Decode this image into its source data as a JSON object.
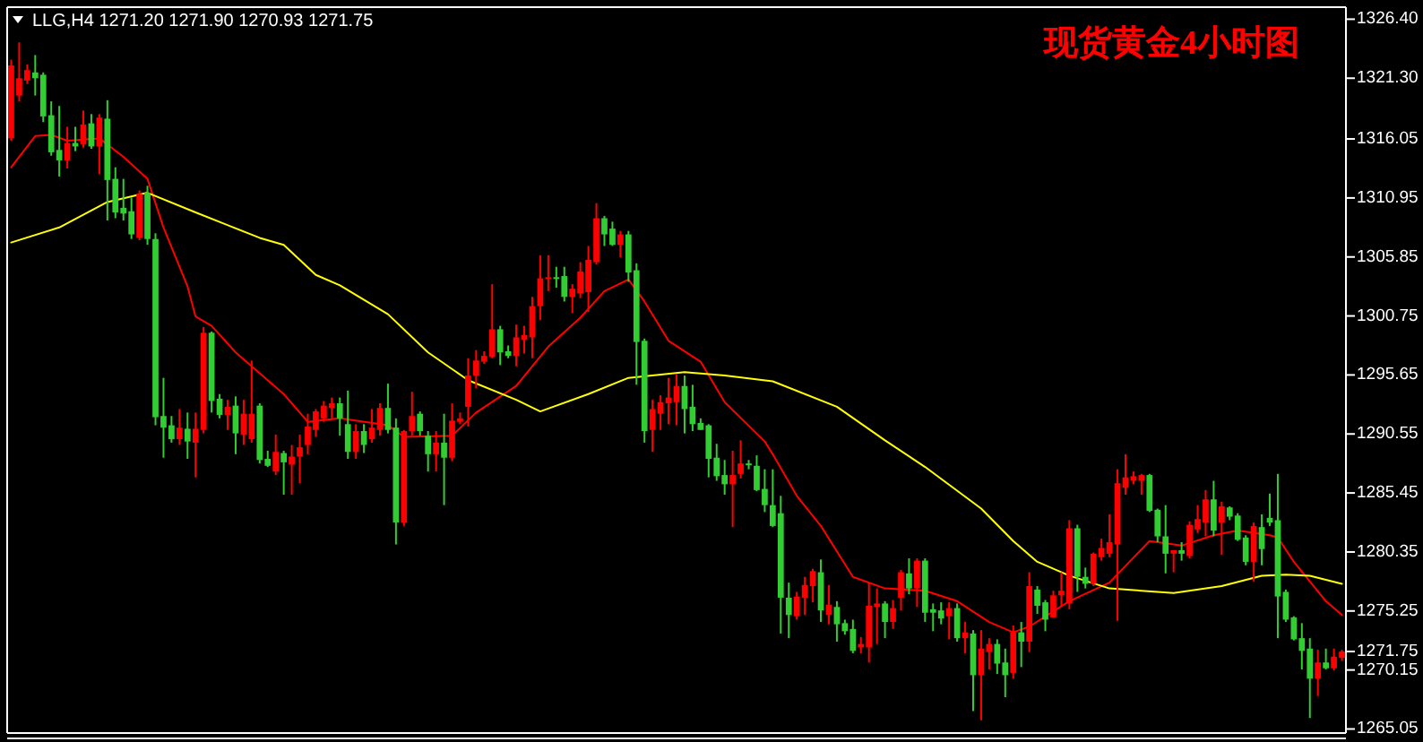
{
  "chart_data": {
    "type": "candlestick",
    "title": "现货黄金4小时图",
    "annotations": [
      "LLG,H4 1271.20 1271.90 1270.93 1271.75"
    ],
    "categories": [
      null,
      null,
      null,
      null,
      null,
      null,
      null,
      null,
      null,
      null,
      null,
      null,
      null,
      null,
      null,
      null,
      null,
      null,
      null,
      null,
      null,
      null,
      null,
      null,
      null,
      null,
      null,
      null,
      null,
      null,
      null,
      null,
      null,
      null,
      null,
      null,
      null,
      null,
      null,
      null,
      null,
      null,
      null,
      null,
      null,
      null,
      null,
      null,
      null,
      null,
      null,
      null,
      null,
      null,
      null,
      null,
      null,
      null,
      null,
      null,
      null,
      null,
      null,
      null,
      null,
      null,
      null,
      null,
      null,
      null,
      null,
      null,
      null,
      null,
      null,
      null,
      null,
      null,
      null,
      null,
      null,
      null,
      null,
      null,
      null,
      null,
      null,
      null,
      null,
      null,
      null,
      null,
      null,
      null,
      null,
      null,
      null,
      null,
      null,
      null,
      null,
      null,
      null,
      null,
      null,
      null,
      null,
      null,
      null,
      null,
      null,
      null,
      null,
      null,
      null,
      null,
      null,
      null,
      null,
      null,
      null,
      null,
      null,
      null,
      null,
      null,
      null,
      null,
      null,
      null,
      null,
      null,
      null,
      null,
      null,
      null,
      null,
      null,
      null,
      null,
      null,
      null,
      null,
      null,
      null,
      null,
      null,
      null,
      null,
      null,
      null,
      null,
      null,
      null,
      null,
      null,
      null,
      null,
      null,
      null,
      null,
      null,
      null,
      null,
      null,
      null,
      null
    ],
    "ohlc": [
      [
        1316.1,
        1322.9,
        1315.9,
        1322.4
      ],
      [
        1319.8,
        1324.4,
        1319.3,
        1321.3
      ],
      [
        1321.1,
        1322.5,
        1320.8,
        1322.0
      ],
      [
        1321.8,
        1323.3,
        1319.8,
        1321.3
      ],
      [
        1321.6,
        1321.8,
        1317.5,
        1318.0
      ],
      [
        1318.1,
        1319.3,
        1314.6,
        1314.9
      ],
      [
        1315.1,
        1318.9,
        1312.8,
        1314.2
      ],
      [
        1314.2,
        1317.1,
        1313.5,
        1315.7
      ],
      [
        1315.7,
        1317.1,
        1315.0,
        1315.4
      ],
      [
        1315.6,
        1318.5,
        1315.3,
        1317.3
      ],
      [
        1317.4,
        1318.2,
        1315.2,
        1315.4
      ],
      [
        1315.4,
        1318.2,
        1313.0,
        1317.9
      ],
      [
        1317.8,
        1319.4,
        1309.0,
        1312.5
      ],
      [
        1312.6,
        1313.6,
        1309.2,
        1309.7
      ],
      [
        1310.1,
        1312.6,
        1309.0,
        1309.6
      ],
      [
        1309.8,
        1311.0,
        1307.4,
        1307.8
      ],
      [
        1307.5,
        1311.6,
        1307.3,
        1311.3
      ],
      [
        1311.4,
        1312.0,
        1306.9,
        1307.4
      ],
      [
        1307.4,
        1307.9,
        1291.3,
        1292.0
      ],
      [
        1292.1,
        1295.4,
        1288.5,
        1291.1
      ],
      [
        1291.3,
        1292.1,
        1289.8,
        1290.1
      ],
      [
        1290.1,
        1292.7,
        1289.6,
        1291.1
      ],
      [
        1291.0,
        1292.4,
        1288.4,
        1289.9
      ],
      [
        1289.8,
        1292.4,
        1286.8,
        1291.0
      ],
      [
        1290.9,
        1299.8,
        1290.6,
        1299.3
      ],
      [
        1299.3,
        1299.4,
        1292.4,
        1293.4
      ],
      [
        1293.6,
        1294.0,
        1291.9,
        1292.2
      ],
      [
        1292.2,
        1293.5,
        1290.9,
        1292.9
      ],
      [
        1293.0,
        1293.8,
        1288.8,
        1290.6
      ],
      [
        1290.5,
        1293.5,
        1289.6,
        1292.3
      ],
      [
        1290.1,
        1296.9,
        1289.8,
        1292.3
      ],
      [
        1293.0,
        1293.2,
        1288.0,
        1288.3
      ],
      [
        1288.4,
        1289.1,
        1287.7,
        1287.8
      ],
      [
        1287.3,
        1290.5,
        1287.0,
        1289.0
      ],
      [
        1288.9,
        1289.1,
        1285.3,
        1288.1
      ],
      [
        1287.9,
        1289.6,
        1285.3,
        1288.6
      ],
      [
        1288.6,
        1290.5,
        1286.3,
        1289.4
      ],
      [
        1289.6,
        1292.3,
        1288.8,
        1291.2
      ],
      [
        1290.9,
        1292.7,
        1290.3,
        1292.5
      ],
      [
        1291.9,
        1293.4,
        1291.6,
        1293.0
      ],
      [
        1292.8,
        1293.7,
        1291.9,
        1293.2
      ],
      [
        1293.2,
        1293.7,
        1290.4,
        1291.9
      ],
      [
        1291.4,
        1294.3,
        1288.4,
        1289.0
      ],
      [
        1289.0,
        1291.4,
        1288.4,
        1290.8
      ],
      [
        1290.8,
        1291.4,
        1288.9,
        1289.6
      ],
      [
        1290.1,
        1292.7,
        1289.8,
        1291.1
      ],
      [
        1290.9,
        1293.2,
        1290.4,
        1292.8
      ],
      [
        1292.8,
        1294.9,
        1290.6,
        1290.9
      ],
      [
        1291.1,
        1291.9,
        1281.0,
        1282.9
      ],
      [
        1282.9,
        1290.9,
        1282.6,
        1290.8
      ],
      [
        1290.8,
        1294.2,
        1290.4,
        1292.1
      ],
      [
        1292.3,
        1292.5,
        1290.4,
        1290.8
      ],
      [
        1290.4,
        1290.8,
        1287.3,
        1288.8
      ],
      [
        1288.8,
        1290.8,
        1287.3,
        1289.8
      ],
      [
        1289.8,
        1292.3,
        1284.4,
        1288.5
      ],
      [
        1288.5,
        1293.2,
        1288.2,
        1291.7
      ],
      [
        1291.6,
        1292.4,
        1291.4,
        1291.9
      ],
      [
        1292.9,
        1297.1,
        1291.2,
        1295.6
      ],
      [
        1295.6,
        1297.8,
        1294.5,
        1296.9
      ],
      [
        1296.8,
        1297.7,
        1296.6,
        1297.3
      ],
      [
        1297.2,
        1303.5,
        1297.1,
        1299.6
      ],
      [
        1299.6,
        1299.9,
        1296.5,
        1297.6
      ],
      [
        1297.7,
        1298.2,
        1297.1,
        1297.3
      ],
      [
        1297.3,
        1300.0,
        1296.4,
        1298.9
      ],
      [
        1298.7,
        1299.9,
        1297.5,
        1299.1
      ],
      [
        1298.9,
        1302.4,
        1297.1,
        1301.6
      ],
      [
        1301.6,
        1306.0,
        1300.4,
        1304.0
      ],
      [
        1304.0,
        1306.0,
        1302.9,
        1304.1
      ],
      [
        1304.1,
        1305.0,
        1303.2,
        1304.0
      ],
      [
        1304.2,
        1305.0,
        1302.0,
        1302.4
      ],
      [
        1302.4,
        1303.5,
        1301.0,
        1303.1
      ],
      [
        1302.7,
        1305.4,
        1302.3,
        1304.6
      ],
      [
        1302.8,
        1306.8,
        1301.1,
        1305.6
      ],
      [
        1305.4,
        1310.5,
        1305.2,
        1309.2
      ],
      [
        1309.2,
        1309.4,
        1306.8,
        1307.8
      ],
      [
        1308.3,
        1308.9,
        1306.8,
        1306.9
      ],
      [
        1306.9,
        1308.1,
        1305.8,
        1307.8
      ],
      [
        1307.8,
        1308.1,
        1303.7,
        1304.5
      ],
      [
        1304.7,
        1305.3,
        1294.8,
        1298.5
      ],
      [
        1298.6,
        1298.8,
        1289.8,
        1290.8
      ],
      [
        1290.9,
        1293.5,
        1289.0,
        1292.7
      ],
      [
        1292.3,
        1293.9,
        1290.9,
        1293.3
      ],
      [
        1293.2,
        1295.4,
        1291.4,
        1293.7
      ],
      [
        1293.3,
        1295.7,
        1291.3,
        1294.7
      ],
      [
        1294.7,
        1295.6,
        1290.6,
        1292.7
      ],
      [
        1292.9,
        1294.8,
        1290.8,
        1291.4
      ],
      [
        1291.5,
        1291.9,
        1290.9,
        1290.9
      ],
      [
        1291.3,
        1291.4,
        1286.8,
        1288.4
      ],
      [
        1288.5,
        1289.7,
        1286.5,
        1286.9
      ],
      [
        1287.0,
        1288.3,
        1285.3,
        1286.2
      ],
      [
        1286.2,
        1289.1,
        1282.5,
        1287.0
      ],
      [
        1287.1,
        1290.0,
        1286.7,
        1288.0
      ],
      [
        1288.0,
        1288.3,
        1287.5,
        1287.9
      ],
      [
        1287.8,
        1288.7,
        1285.6,
        1285.7
      ],
      [
        1285.8,
        1287.5,
        1283.8,
        1284.4
      ],
      [
        1284.4,
        1287.5,
        1282.5,
        1282.6
      ],
      [
        1283.7,
        1285.2,
        1273.3,
        1276.4
      ],
      [
        1276.4,
        1277.7,
        1272.9,
        1274.9
      ],
      [
        1274.8,
        1276.9,
        1274.5,
        1276.5
      ],
      [
        1276.4,
        1278.2,
        1274.9,
        1277.5
      ],
      [
        1277.4,
        1278.9,
        1276.0,
        1278.7
      ],
      [
        1278.6,
        1279.7,
        1274.3,
        1275.3
      ],
      [
        1274.9,
        1277.5,
        1274.1,
        1275.8
      ],
      [
        1275.6,
        1276.1,
        1272.6,
        1274.1
      ],
      [
        1274.2,
        1274.5,
        1273.2,
        1273.5
      ],
      [
        1273.7,
        1274.5,
        1271.6,
        1271.8
      ],
      [
        1272.1,
        1273.0,
        1271.6,
        1272.4
      ],
      [
        1272.1,
        1277.7,
        1270.8,
        1275.7
      ],
      [
        1275.6,
        1277.2,
        1272.4,
        1275.9
      ],
      [
        1275.9,
        1276.1,
        1272.9,
        1274.3
      ],
      [
        1274.3,
        1276.2,
        1273.7,
        1275.5
      ],
      [
        1276.4,
        1278.8,
        1275.3,
        1278.6
      ],
      [
        1278.5,
        1279.8,
        1276.7,
        1277.2
      ],
      [
        1277.2,
        1279.8,
        1275.6,
        1279.6
      ],
      [
        1279.6,
        1279.8,
        1274.3,
        1275.1
      ],
      [
        1275.4,
        1275.9,
        1273.5,
        1275.1
      ],
      [
        1275.3,
        1276.0,
        1274.1,
        1274.6
      ],
      [
        1274.8,
        1276.0,
        1272.8,
        1275.5
      ],
      [
        1275.5,
        1275.9,
        1272.6,
        1272.9
      ],
      [
        1272.9,
        1274.3,
        1271.6,
        1273.4
      ],
      [
        1273.3,
        1273.6,
        1266.6,
        1269.7
      ],
      [
        1269.7,
        1273.6,
        1265.8,
        1272.0
      ],
      [
        1271.7,
        1272.9,
        1270.2,
        1272.4
      ],
      [
        1272.4,
        1272.8,
        1269.8,
        1270.7
      ],
      [
        1270.8,
        1272.0,
        1267.8,
        1269.7
      ],
      [
        1269.9,
        1274.0,
        1269.4,
        1273.4
      ],
      [
        1273.4,
        1274.3,
        1270.4,
        1272.6
      ],
      [
        1272.6,
        1278.6,
        1271.7,
        1277.4
      ],
      [
        1277.1,
        1277.4,
        1275.0,
        1275.7
      ],
      [
        1276.0,
        1276.2,
        1273.5,
        1274.5
      ],
      [
        1274.7,
        1277.0,
        1274.7,
        1276.6
      ],
      [
        1276.6,
        1278.6,
        1275.6,
        1277.0
      ],
      [
        1275.9,
        1283.1,
        1275.4,
        1282.4
      ],
      [
        1282.4,
        1282.7,
        1276.9,
        1278.2
      ],
      [
        1278.2,
        1279.0,
        1277.2,
        1277.6
      ],
      [
        1277.6,
        1280.3,
        1277.4,
        1280.2
      ],
      [
        1279.9,
        1281.5,
        1279.6,
        1280.7
      ],
      [
        1280.2,
        1283.6,
        1279.9,
        1281.2
      ],
      [
        1281.0,
        1287.5,
        1274.4,
        1286.3
      ],
      [
        1285.9,
        1288.8,
        1285.3,
        1286.8
      ],
      [
        1286.5,
        1287.3,
        1286.2,
        1286.9
      ],
      [
        1286.5,
        1287.1,
        1285.3,
        1287.0
      ],
      [
        1287.0,
        1287.1,
        1283.8,
        1283.9
      ],
      [
        1284.0,
        1284.1,
        1281.2,
        1281.7
      ],
      [
        1281.7,
        1284.4,
        1278.5,
        1280.2
      ],
      [
        1280.2,
        1280.5,
        1278.6,
        1280.5
      ],
      [
        1280.5,
        1281.2,
        1279.6,
        1280.2
      ],
      [
        1280.0,
        1283.0,
        1279.8,
        1282.7
      ],
      [
        1282.3,
        1284.4,
        1282.0,
        1283.2
      ],
      [
        1282.9,
        1285.7,
        1281.7,
        1284.9
      ],
      [
        1284.9,
        1286.5,
        1281.7,
        1282.2
      ],
      [
        1282.9,
        1284.7,
        1280.1,
        1284.3
      ],
      [
        1284.2,
        1284.3,
        1283.1,
        1283.4
      ],
      [
        1283.5,
        1283.7,
        1281.3,
        1281.4
      ],
      [
        1281.6,
        1281.8,
        1279.2,
        1279.5
      ],
      [
        1279.5,
        1282.9,
        1277.8,
        1282.6
      ],
      [
        1282.5,
        1283.6,
        1279.2,
        1280.6
      ],
      [
        1283.3,
        1285.4,
        1282.6,
        1282.9
      ],
      [
        1283.1,
        1287.1,
        1272.9,
        1276.5
      ],
      [
        1276.9,
        1277.1,
        1274.3,
        1274.5
      ],
      [
        1274.7,
        1274.8,
        1272.7,
        1272.8
      ],
      [
        1272.9,
        1274.2,
        1270.2,
        1271.8
      ],
      [
        1272.0,
        1272.9,
        1266.0,
        1269.4
      ],
      [
        1269.4,
        1271.9,
        1267.9,
        1270.8
      ],
      [
        1270.8,
        1272.0,
        1270.2,
        1270.3
      ],
      [
        1270.3,
        1272.0,
        1270.1,
        1271.3
      ],
      [
        1271.2,
        1271.9,
        1270.93,
        1271.75
      ]
    ],
    "colors": [
      "#ff0000",
      "#ff0000",
      "#ff0000",
      "#32cd32",
      "#32cd32",
      "#32cd32",
      "#32cd32",
      "#ff0000",
      "#32cd32",
      "#ff0000",
      "#32cd32",
      "#ff0000",
      "#32cd32",
      "#32cd32",
      "#32cd32",
      "#32cd32",
      "#ff0000",
      "#32cd32",
      "#32cd32",
      "#32cd32",
      "#32cd32",
      "#ff0000",
      "#32cd32",
      "#ff0000",
      "#ff0000",
      "#32cd32",
      "#32cd32",
      "#ff0000",
      "#32cd32",
      "#ff0000",
      "#ff0000",
      "#32cd32",
      "#32cd32",
      "#ff0000",
      "#32cd32",
      "#ff0000",
      "#ff0000",
      "#ff0000",
      "#ff0000",
      "#ff0000",
      "#ff0000",
      "#32cd32",
      "#32cd32",
      "#ff0000",
      "#32cd32",
      "#ff0000",
      "#ff0000",
      "#32cd32",
      "#32cd32",
      "#ff0000",
      "#ff0000",
      "#32cd32",
      "#32cd32",
      "#ff0000",
      "#32cd32",
      "#ff0000",
      "#ff0000",
      "#ff0000",
      "#ff0000",
      "#ff0000",
      "#ff0000",
      "#32cd32",
      "#32cd32",
      "#ff0000",
      "#ff0000",
      "#ff0000",
      "#ff0000",
      "#ff0000",
      "#32cd32",
      "#32cd32",
      "#ff0000",
      "#ff0000",
      "#ff0000",
      "#ff0000",
      "#32cd32",
      "#32cd32",
      "#ff0000",
      "#32cd32",
      "#32cd32",
      "#32cd32",
      "#ff0000",
      "#ff0000",
      "#ff0000",
      "#ff0000",
      "#32cd32",
      "#32cd32",
      "#32cd32",
      "#32cd32",
      "#32cd32",
      "#32cd32",
      "#ff0000",
      "#ff0000",
      "#32cd32",
      "#32cd32",
      "#32cd32",
      "#32cd32",
      "#32cd32",
      "#32cd32",
      "#ff0000",
      "#ff0000",
      "#ff0000",
      "#32cd32",
      "#ff0000",
      "#32cd32",
      "#32cd32",
      "#32cd32",
      "#ff0000",
      "#ff0000",
      "#ff0000",
      "#32cd32",
      "#ff0000",
      "#ff0000",
      "#32cd32",
      "#ff0000",
      "#32cd32",
      "#32cd32",
      "#32cd32",
      "#ff0000",
      "#32cd32",
      "#ff0000",
      "#32cd32",
      "#ff0000",
      "#ff0000",
      "#32cd32",
      "#32cd32",
      "#ff0000",
      "#32cd32",
      "#ff0000",
      "#32cd32",
      "#32cd32",
      "#ff0000",
      "#ff0000",
      "#ff0000",
      "#32cd32",
      "#32cd32",
      "#ff0000",
      "#ff0000",
      "#ff0000",
      "#ff0000",
      "#ff0000",
      "#ff0000",
      "#ff0000",
      "#32cd32",
      "#32cd32",
      "#32cd32",
      "#ff0000",
      "#32cd32",
      "#ff0000",
      "#ff0000",
      "#ff0000",
      "#32cd32",
      "#ff0000",
      "#32cd32",
      "#32cd32",
      "#32cd32",
      "#ff0000",
      "#32cd32",
      "#32cd32",
      "#32cd32",
      "#32cd32",
      "#32cd32",
      "#32cd32",
      "#32cd32",
      "#ff0000",
      "#32cd32",
      "#ff0000",
      "#ff0000"
    ],
    "series": [
      {
        "type": "line",
        "color": "#ff0000",
        "values": [
          1313.6,
          null,
          null,
          1316.3,
          null,
          1316.4,
          null,
          1315.9,
          null,
          null,
          null,
          1316.1,
          null,
          null,
          1314.5,
          null,
          null,
          1312.6,
          null,
          1308.4,
          null,
          null,
          1303.3,
          1300.7,
          null,
          1299.9,
          null,
          null,
          1297.6,
          null,
          null,
          null,
          1295.2,
          null,
          1294.0,
          null,
          null,
          1291.6,
          null,
          null,
          null,
          1291.9,
          null,
          null,
          null,
          null,
          null,
          1291.3,
          null,
          1290.3,
          null,
          null,
          null,
          null,
          null,
          1290.4,
          null,
          null,
          1292.4,
          null,
          null,
          null,
          null,
          1294.7,
          null,
          null,
          null,
          1298.1,
          null,
          null,
          null,
          1300.6,
          null,
          null,
          1302.9,
          null,
          null,
          1303.9,
          null,
          1302.0,
          null,
          null,
          1298.6,
          null,
          null,
          null,
          1296.8,
          null,
          null,
          1293.3,
          null,
          null,
          null,
          null,
          1289.9,
          1288.8,
          null,
          null,
          1285.2,
          null,
          null,
          1282.6,
          null,
          null,
          null,
          1278.2,
          null,
          null,
          null,
          1277.2,
          null,
          null,
          null,
          null,
          1277.0,
          null,
          null,
          null,
          1276.1,
          null,
          null,
          null,
          1274.3,
          null,
          null,
          1273.4,
          null,
          1273.9,
          null,
          null,
          null,
          null,
          1276.1,
          null,
          null,
          null,
          null,
          1277.7,
          null,
          null,
          null,
          null,
          1281.3,
          null,
          null,
          null,
          1280.9,
          null,
          null,
          null,
          1281.8,
          null,
          null,
          1282.2,
          null,
          null,
          null,
          1281.8,
          1281.6,
          null,
          1279.5,
          null,
          null,
          null,
          1276.1,
          null,
          1274.9
        ]
      },
      {
        "type": "line",
        "color": "#ffff00",
        "values": [
          1307.1,
          null,
          null,
          null,
          null,
          null,
          1308.4,
          null,
          null,
          null,
          null,
          null,
          1310.6,
          null,
          null,
          null,
          null,
          1311.4,
          null,
          null,
          null,
          null,
          null,
          1309.7,
          null,
          null,
          null,
          null,
          null,
          null,
          null,
          1307.5,
          null,
          null,
          1306.9,
          null,
          null,
          null,
          1304.3,
          null,
          null,
          1303.4,
          null,
          null,
          null,
          null,
          null,
          1300.9,
          null,
          null,
          null,
          null,
          1297.6,
          null,
          null,
          null,
          null,
          1295.2,
          null,
          null,
          null,
          null,
          null,
          1293.5,
          null,
          null,
          1292.5,
          null,
          null,
          null,
          null,
          null,
          1294.0,
          null,
          null,
          null,
          null,
          1295.4,
          null,
          null,
          null,
          null,
          null,
          null,
          1295.9,
          null,
          null,
          null,
          null,
          1295.6,
          null,
          null,
          null,
          null,
          null,
          1295.1,
          null,
          null,
          null,
          null,
          null,
          null,
          null,
          1292.9,
          null,
          null,
          null,
          null,
          null,
          1290.0,
          null,
          null,
          null,
          null,
          1287.7,
          null,
          null,
          null,
          null,
          null,
          null,
          1284.1,
          null,
          null,
          null,
          1281.3,
          null,
          null,
          1279.5,
          null,
          null,
          null,
          1278.3,
          null,
          null,
          null,
          null,
          1277.2,
          null,
          null,
          null,
          1277.0,
          null,
          null,
          null,
          1276.8,
          null,
          null,
          null,
          null,
          null,
          1277.4,
          null,
          null,
          null,
          null,
          1278.3,
          null,
          null,
          1278.4,
          null,
          null,
          1278.3,
          null,
          null,
          null,
          1277.6
        ]
      }
    ],
    "ylim": [
      1264.7,
      1327.44
    ],
    "yticks": [
      {
        "value": 1326.4,
        "label": "1326.40"
      },
      {
        "value": 1321.3,
        "label": "1321.30"
      },
      {
        "value": 1316.05,
        "label": "1316.05"
      },
      {
        "value": 1310.95,
        "label": "1310.95"
      },
      {
        "value": 1305.85,
        "label": "1305.85"
      },
      {
        "value": 1300.75,
        "label": "1300.75"
      },
      {
        "value": 1295.65,
        "label": "1295.65"
      },
      {
        "value": 1290.55,
        "label": "1290.55"
      },
      {
        "value": 1285.45,
        "label": "1285.45"
      },
      {
        "value": 1280.35,
        "label": "1280.35"
      },
      {
        "value": 1275.25,
        "label": "1275.25"
      },
      {
        "value": 1271.75,
        "label": "1271.75"
      },
      {
        "value": 1270.15,
        "label": "1270.15"
      },
      {
        "value": 1265.05,
        "label": "1265.05"
      }
    ],
    "tick_labels": "y"
  }
}
